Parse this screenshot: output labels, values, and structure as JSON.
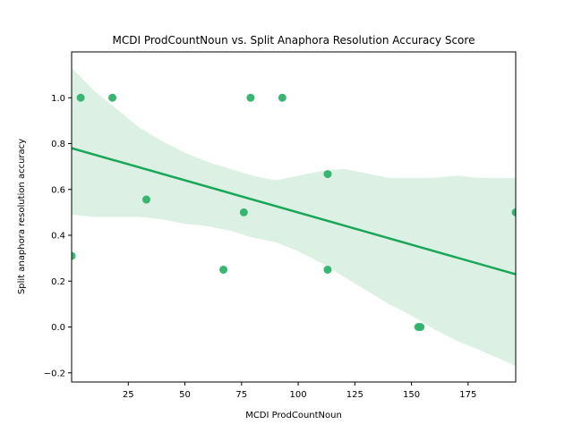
{
  "chart_data": {
    "type": "scatter",
    "title": "MCDI ProdCountNoun vs. Split Anaphora Resolution Accuracy Score",
    "xlabel": "MCDI ProdCountNoun",
    "ylabel": "Split anaphora resolution accuracy",
    "xlim": [
      0,
      196
    ],
    "ylim": [
      -0.24,
      1.2
    ],
    "xticks": [
      25,
      50,
      75,
      100,
      125,
      150,
      175
    ],
    "xtick_labels": [
      "25",
      "50",
      "75",
      "100",
      "125",
      "150",
      "175"
    ],
    "yticks": [
      -0.2,
      0.0,
      0.2,
      0.4,
      0.6,
      0.8,
      1.0
    ],
    "ytick_labels": [
      "−0.2",
      "0.0",
      "0.2",
      "0.4",
      "0.6",
      "0.8",
      "1.0"
    ],
    "grid": false,
    "points": [
      {
        "x": 0,
        "y": 0.31
      },
      {
        "x": 4,
        "y": 1.0
      },
      {
        "x": 18,
        "y": 1.0
      },
      {
        "x": 33,
        "y": 0.556
      },
      {
        "x": 67,
        "y": 0.25
      },
      {
        "x": 76,
        "y": 0.5
      },
      {
        "x": 79,
        "y": 1.0
      },
      {
        "x": 93,
        "y": 1.0
      },
      {
        "x": 113,
        "y": 0.667
      },
      {
        "x": 113,
        "y": 0.25
      },
      {
        "x": 153,
        "y": 0.0
      },
      {
        "x": 154,
        "y": 0.0
      },
      {
        "x": 196,
        "y": 0.5
      }
    ],
    "regression_line": {
      "x": [
        0,
        196
      ],
      "y": [
        0.78,
        0.23
      ]
    },
    "confidence_band": {
      "x": [
        0,
        10,
        20,
        30,
        40,
        50,
        60,
        70,
        80,
        90,
        100,
        110,
        120,
        130,
        140,
        150,
        160,
        170,
        180,
        196
      ],
      "upper": [
        1.13,
        1.03,
        0.95,
        0.87,
        0.81,
        0.76,
        0.72,
        0.69,
        0.66,
        0.64,
        0.66,
        0.68,
        0.69,
        0.67,
        0.65,
        0.65,
        0.65,
        0.66,
        0.65,
        0.65
      ],
      "lower": [
        0.49,
        0.48,
        0.48,
        0.48,
        0.47,
        0.45,
        0.44,
        0.42,
        0.39,
        0.37,
        0.33,
        0.28,
        0.22,
        0.16,
        0.1,
        0.05,
        -0.01,
        -0.06,
        -0.1,
        -0.17
      ]
    },
    "colors": {
      "points": "#2eb26a",
      "line": "#1aa75a",
      "band": "#dcf1e4"
    }
  }
}
